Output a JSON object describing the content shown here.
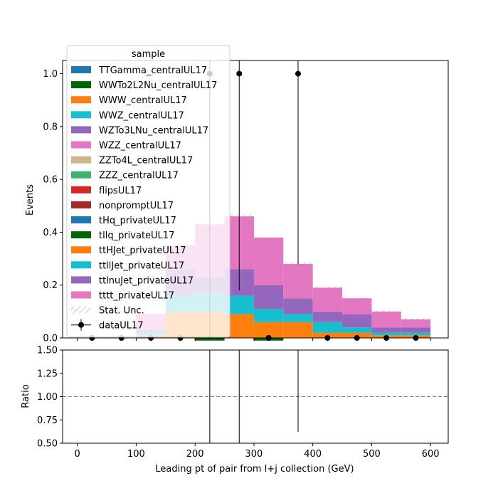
{
  "chart_data": {
    "type": "bar",
    "stacked": true,
    "xlabel": "Leading pt of pair from l+j collection (GeV)",
    "ylabel": "Events",
    "ratio_ylabel": "Ratio",
    "xlim": [
      -25,
      630
    ],
    "ylim": [
      0,
      1.05
    ],
    "ratio_ylim": [
      0.5,
      1.5
    ],
    "x_ticks": [
      0,
      100,
      200,
      300,
      400,
      500,
      600
    ],
    "y_ticks": [
      0.0,
      0.2,
      0.4,
      0.6,
      0.8,
      1.0
    ],
    "ratio_ticks": [
      0.5,
      0.75,
      1.0,
      1.25,
      1.5
    ],
    "ratio_ref": 1.0,
    "bin_edges": [
      0,
      50,
      100,
      150,
      200,
      250,
      300,
      350,
      400,
      450,
      500,
      550,
      600
    ],
    "legend_title": "sample",
    "legend_placement": "upper-left",
    "series": [
      {
        "name": "TTGamma_centralUL17",
        "color": "#1f77b4",
        "values": [
          0,
          0,
          0,
          0,
          0,
          0,
          0,
          0,
          0,
          0,
          0,
          0
        ]
      },
      {
        "name": "WWTo2L2Nu_centralUL17",
        "color": "#006400",
        "values": [
          0,
          0,
          0,
          0,
          0,
          0,
          0,
          0,
          0,
          0,
          0,
          0
        ]
      },
      {
        "name": "WWW_centralUL17",
        "color": "#ff7f0e",
        "values": [
          0,
          0,
          0,
          0,
          0,
          0,
          0,
          0,
          0,
          0,
          0,
          0
        ]
      },
      {
        "name": "WWZ_centralUL17",
        "color": "#17becf",
        "values": [
          0,
          0,
          0,
          0,
          0,
          0,
          0,
          0,
          0,
          0,
          0,
          0
        ]
      },
      {
        "name": "WZTo3LNu_centralUL17",
        "color": "#9467bd",
        "values": [
          0,
          0,
          0,
          0,
          0,
          0,
          0,
          0,
          0,
          0,
          0,
          0
        ]
      },
      {
        "name": "WZZ_centralUL17",
        "color": "#e377c2",
        "values": [
          0,
          0,
          0,
          0,
          0,
          0,
          0,
          0,
          0,
          0,
          0,
          0
        ]
      },
      {
        "name": "ZZTo4L_centralUL17",
        "color": "#d2b48c",
        "values": [
          0,
          0,
          0,
          0,
          0,
          0,
          0,
          0,
          0,
          0,
          0,
          0
        ]
      },
      {
        "name": "ZZZ_centralUL17",
        "color": "#3cb371",
        "values": [
          0,
          0,
          0,
          0,
          0,
          0,
          0,
          0,
          0,
          0,
          0,
          0
        ]
      },
      {
        "name": "flipsUL17",
        "color": "#d62728",
        "values": [
          0,
          0,
          0,
          0,
          0,
          0,
          0,
          0,
          0,
          0,
          0,
          0
        ]
      },
      {
        "name": "nonpromptUL17",
        "color": "#a52a2a",
        "values": [
          0,
          0,
          0,
          0,
          0,
          0,
          0,
          0,
          0,
          0,
          0,
          0
        ]
      },
      {
        "name": "tHq_privateUL17",
        "color": "#1f77b4",
        "values": [
          0,
          0,
          0,
          0,
          0,
          0,
          0,
          0,
          0,
          0,
          0,
          0
        ]
      },
      {
        "name": "tllq_privateUL17",
        "color": "#006400",
        "values": [
          0,
          0,
          0,
          0,
          -0.01,
          0,
          -0.01,
          0,
          0,
          0,
          0,
          0
        ]
      },
      {
        "name": "ttHJet_privateUL17",
        "color": "#ff7f0e",
        "values": [
          0,
          0,
          0.01,
          0.1,
          0.1,
          0.09,
          0.06,
          0.06,
          0.02,
          0.02,
          0.01,
          0.01
        ]
      },
      {
        "name": "ttllJet_privateUL17",
        "color": "#17becf",
        "values": [
          0,
          0,
          0.01,
          0.06,
          0.07,
          0.07,
          0.05,
          0.03,
          0.04,
          0.02,
          0.01,
          0.01
        ]
      },
      {
        "name": "ttlnuJet_privateUL17",
        "color": "#9467bd",
        "values": [
          0,
          0,
          0.01,
          0.1,
          0.06,
          0.1,
          0.09,
          0.06,
          0.04,
          0.05,
          0.02,
          0.02
        ]
      },
      {
        "name": "tttt_privateUL17",
        "color": "#e377c2",
        "values": [
          0,
          0,
          0.06,
          0.09,
          0.2,
          0.2,
          0.18,
          0.13,
          0.09,
          0.06,
          0.06,
          0.03
        ]
      }
    ],
    "stat_unc_label": "Stat. Unc.",
    "data": {
      "name": "dataUL17",
      "x": [
        25,
        75,
        125,
        175,
        225,
        275,
        325,
        375,
        425,
        475,
        525,
        575
      ],
      "y": [
        0,
        0,
        0,
        0,
        1,
        1,
        0,
        1,
        0,
        0,
        0,
        0
      ],
      "yerr": [
        0,
        0,
        0,
        0,
        1.2,
        0.82,
        0,
        0.72,
        0,
        0,
        0,
        0
      ]
    },
    "ratio": {
      "lines": [
        {
          "x": 225,
          "low": 0.5,
          "high": 1.5
        },
        {
          "x": 275,
          "low": 0.5,
          "high": 1.5
        },
        {
          "x": 375,
          "low": 0.62,
          "high": 1.5
        }
      ]
    }
  }
}
